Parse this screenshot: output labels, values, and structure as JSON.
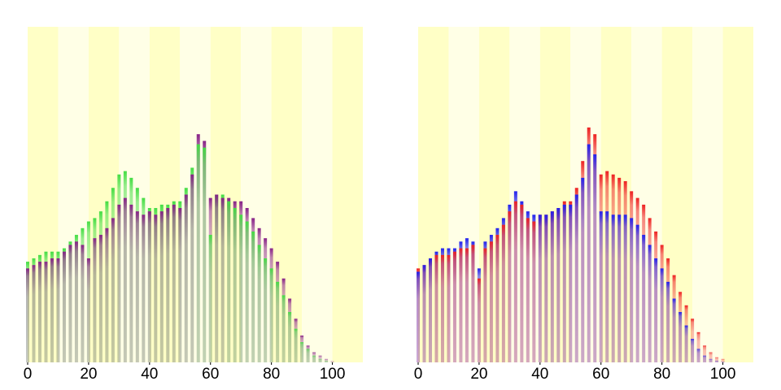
{
  "chart_data": [
    {
      "type": "bar",
      "x": [
        0,
        2,
        4,
        6,
        8,
        10,
        12,
        14,
        16,
        18,
        20,
        22,
        24,
        26,
        28,
        30,
        32,
        34,
        36,
        38,
        40,
        42,
        44,
        46,
        48,
        50,
        52,
        54,
        56,
        58,
        60,
        62,
        64,
        66,
        68,
        70,
        72,
        74,
        76,
        78,
        80,
        82,
        84,
        86,
        88,
        90,
        92,
        94,
        96,
        98,
        100
      ],
      "series": [
        {
          "color": "#44dd44",
          "values": [
            30,
            31,
            32,
            33,
            33,
            33,
            34,
            36,
            38,
            40,
            42,
            43,
            45,
            48,
            52,
            56,
            57,
            55,
            52,
            49,
            46,
            46,
            47,
            47,
            48,
            48,
            52,
            58,
            65,
            64,
            38,
            50,
            50,
            48,
            46,
            44,
            42,
            39,
            35,
            31,
            28,
            24,
            20,
            15,
            10,
            6,
            4,
            2,
            1,
            0.5,
            0
          ]
        },
        {
          "color": "#882288",
          "values": [
            28,
            29,
            30,
            30,
            31,
            31,
            33,
            35,
            36,
            35,
            31,
            37,
            38,
            40,
            43,
            47,
            49,
            47,
            45,
            44,
            45,
            44,
            45,
            46,
            47,
            46,
            50,
            56,
            68,
            66,
            49,
            50,
            49,
            49,
            48,
            48,
            46,
            43,
            40,
            37,
            34,
            30,
            25,
            19,
            13,
            8,
            5,
            3,
            2,
            1,
            0.3
          ]
        }
      ],
      "xlim": [
        0,
        110
      ],
      "xticks": [
        0,
        20,
        40,
        60,
        80,
        100
      ],
      "ylim": [
        0,
        100
      ]
    },
    {
      "type": "bar",
      "x": [
        0,
        2,
        4,
        6,
        8,
        10,
        12,
        14,
        16,
        18,
        20,
        22,
        24,
        26,
        28,
        30,
        32,
        34,
        36,
        38,
        40,
        42,
        44,
        46,
        48,
        50,
        52,
        54,
        56,
        58,
        60,
        62,
        64,
        66,
        68,
        70,
        72,
        74,
        76,
        78,
        80,
        82,
        84,
        86,
        88,
        90,
        92,
        94,
        96,
        98,
        100
      ],
      "series": [
        {
          "color": "#ee2222",
          "values": [
            28,
            29,
            31,
            32,
            32,
            32,
            33,
            34,
            34,
            35,
            25,
            34,
            36,
            38,
            41,
            45,
            48,
            47,
            43,
            42,
            44,
            44,
            45,
            46,
            48,
            48,
            52,
            60,
            70,
            68,
            56,
            57,
            56,
            55,
            54,
            51,
            49,
            47,
            43,
            39,
            35,
            31,
            26,
            21,
            17,
            13,
            9,
            5,
            3,
            1.5,
            1
          ]
        },
        {
          "color": "#2222ee",
          "values": [
            27,
            29,
            31,
            33,
            34,
            34,
            34,
            36,
            37,
            36,
            28,
            36,
            38,
            40,
            43,
            47,
            51,
            48,
            45,
            44,
            44,
            44,
            45,
            46,
            47,
            47,
            50,
            55,
            65,
            62,
            45,
            45,
            44,
            44,
            44,
            43,
            41,
            38,
            35,
            31,
            28,
            24,
            19,
            15,
            11,
            7,
            4,
            2,
            1,
            0.5,
            0.2
          ]
        }
      ],
      "xlim": [
        0,
        110
      ],
      "xticks": [
        0,
        20,
        40,
        60,
        80,
        100
      ],
      "ylim": [
        0,
        100
      ]
    }
  ]
}
